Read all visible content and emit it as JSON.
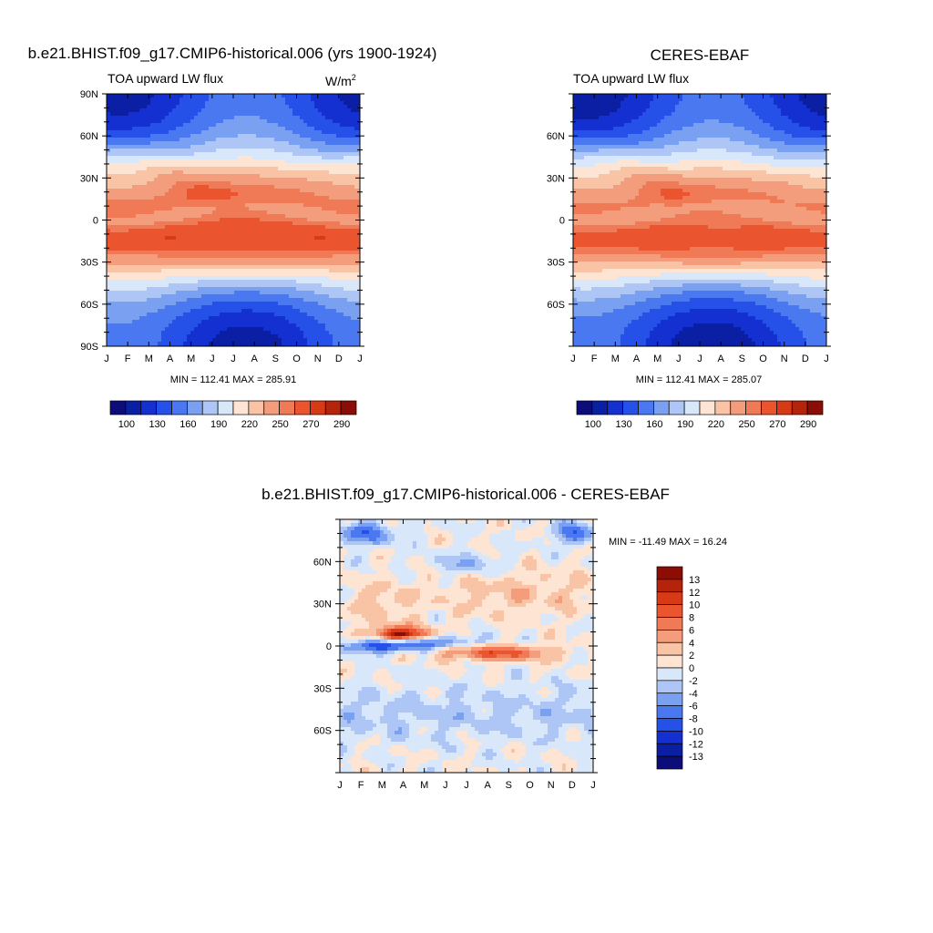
{
  "panels": [
    {
      "main_title": "b.e21.BHIST.f09_g17.CMIP6-historical.006 (yrs 1900-1924)",
      "left_title": "TOA upward LW flux",
      "right_title": "W/m",
      "right_title_sup": "2",
      "stats": "MIN = 112.41 MAX = 285.91"
    },
    {
      "main_title": "CERES-EBAF",
      "left_title": "TOA upward LW flux",
      "stats": "MIN = 112.41 MAX = 285.07"
    },
    {
      "main_title": "b.e21.BHIST.f09_g17.CMIP6-historical.006 - CERES-EBAF",
      "stats": "MIN = -11.49 MAX =  16.24"
    }
  ],
  "chart_data": [
    {
      "type": "heatmap",
      "title": "b.e21.BHIST.f09_g17.CMIP6-historical.006 (yrs 1900-1924)",
      "variable": "TOA upward LW flux",
      "units": "W/m2",
      "x_ticks": [
        "J",
        "F",
        "M",
        "A",
        "M",
        "J",
        "J",
        "A",
        "S",
        "O",
        "N",
        "D",
        "J"
      ],
      "y_ticks": [
        "90N",
        "60N",
        "30N",
        "0",
        "30S",
        "60S",
        "90S"
      ],
      "min": 112.41,
      "max": 285.91,
      "colorbar": {
        "levels": [
          "100",
          "130",
          "160",
          "190",
          "220",
          "250",
          "270",
          "290"
        ],
        "colors": [
          "#0d0d7a",
          "#0a1fa3",
          "#1530d0",
          "#2551e8",
          "#4a78f0",
          "#7aa0f2",
          "#aec6f5",
          "#d9e7fa",
          "#fde4d3",
          "#f9c3a6",
          "#f49d7c",
          "#ef7a55",
          "#ea5530",
          "#d83a16",
          "#b5230b",
          "#8b0d05"
        ]
      }
    },
    {
      "type": "heatmap",
      "title": "CERES-EBAF",
      "variable": "TOA upward LW flux",
      "x_ticks": [
        "J",
        "F",
        "M",
        "A",
        "M",
        "J",
        "J",
        "A",
        "S",
        "O",
        "N",
        "D",
        "J"
      ],
      "y_ticks": [
        "60N",
        "30N",
        "0",
        "30S",
        "60S"
      ],
      "min": 112.41,
      "max": 285.07,
      "colorbar": {
        "levels": [
          "100",
          "130",
          "160",
          "190",
          "220",
          "250",
          "270",
          "290"
        ],
        "colors": [
          "#0d0d7a",
          "#0a1fa3",
          "#1530d0",
          "#2551e8",
          "#4a78f0",
          "#7aa0f2",
          "#aec6f5",
          "#d9e7fa",
          "#fde4d3",
          "#f9c3a6",
          "#f49d7c",
          "#ef7a55",
          "#ea5530",
          "#d83a16",
          "#b5230b",
          "#8b0d05"
        ]
      }
    },
    {
      "type": "heatmap",
      "title": "b.e21.BHIST.f09_g17.CMIP6-historical.006 - CERES-EBAF",
      "x_ticks": [
        "J",
        "F",
        "M",
        "A",
        "M",
        "J",
        "J",
        "A",
        "S",
        "O",
        "N",
        "D",
        "J"
      ],
      "y_ticks": [
        "60N",
        "30N",
        "0",
        "30S",
        "60S"
      ],
      "min": -11.49,
      "max": 16.24,
      "colorbar": {
        "levels": [
          "13",
          "12",
          "10",
          "8",
          "6",
          "4",
          "2",
          "0",
          "-2",
          "-4",
          "-6",
          "-8",
          "-10",
          "-12",
          "-13"
        ],
        "colors": [
          "#8b0d05",
          "#b5230b",
          "#d83a16",
          "#ea5530",
          "#ef7a55",
          "#f49d7c",
          "#f9c3a6",
          "#fde4d3",
          "#d9e7fa",
          "#aec6f5",
          "#7aa0f2",
          "#4a78f0",
          "#2551e8",
          "#1530d0",
          "#0a1fa3",
          "#0d0d7a"
        ]
      }
    }
  ]
}
